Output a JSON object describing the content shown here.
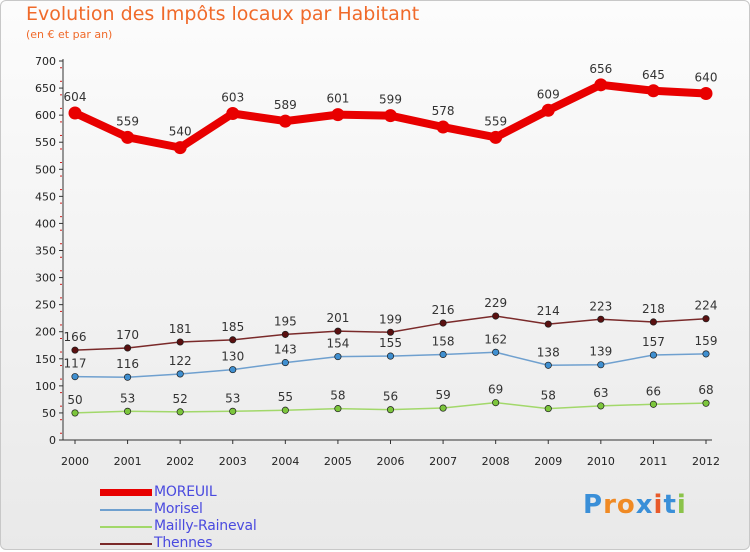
{
  "header": {
    "title": "Evolution des Impôts locaux par Habitant",
    "subtitle": "(en € et par an)"
  },
  "brand": {
    "name": "Proxiti",
    "colors": [
      "#3a8fd8",
      "#f08a24",
      "#f08a24",
      "#3a8fd8",
      "#e85a2a",
      "#3a8fd8",
      "#8bc34a"
    ]
  },
  "chart_data": {
    "type": "line",
    "title": "Evolution des Impôts locaux par Habitant",
    "subtitle": "(en € et par an)",
    "xlabel": "",
    "ylabel": "",
    "x": [
      "2000",
      "2001",
      "2002",
      "2003",
      "2004",
      "2005",
      "2006",
      "2007",
      "2008",
      "2009",
      "2010",
      "2011",
      "2012"
    ],
    "ylim": [
      0,
      700
    ],
    "yticks": [
      0,
      50,
      100,
      150,
      200,
      250,
      300,
      350,
      400,
      450,
      500,
      550,
      600,
      650,
      700
    ],
    "grid": false,
    "legend_position": "bottom-left",
    "series": [
      {
        "name": "MOREUIL",
        "color": "#e80000",
        "emphasis": true,
        "values": [
          604,
          559,
          540,
          603,
          589,
          601,
          599,
          578,
          559,
          609,
          656,
          645,
          640
        ]
      },
      {
        "name": "Morisel",
        "color": "#6fa0cf",
        "marker_fill": "#3f8fd0",
        "values": [
          117,
          116,
          122,
          130,
          143,
          154,
          155,
          158,
          162,
          138,
          139,
          157,
          159
        ]
      },
      {
        "name": "Mailly-Raineval",
        "color": "#a2d86a",
        "marker_fill": "#7cc63c",
        "values": [
          50,
          53,
          52,
          53,
          55,
          58,
          56,
          59,
          69,
          58,
          63,
          66,
          68
        ]
      },
      {
        "name": "Thennes",
        "color": "#7a2a2a",
        "marker_fill": "#5a1010",
        "values": [
          166,
          170,
          181,
          185,
          195,
          201,
          199,
          216,
          229,
          214,
          223,
          218,
          224
        ]
      }
    ]
  }
}
